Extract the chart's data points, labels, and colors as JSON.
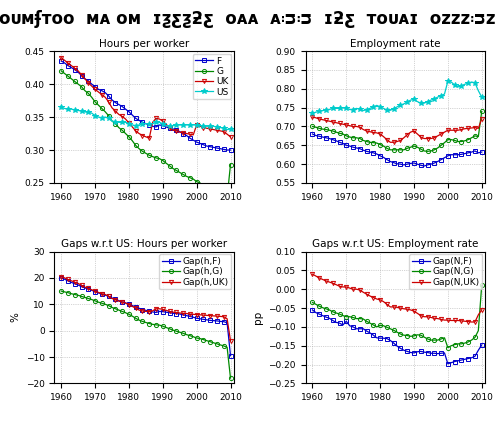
{
  "years": [
    1960,
    1961,
    1962,
    1963,
    1964,
    1965,
    1966,
    1967,
    1968,
    1969,
    1970,
    1971,
    1972,
    1973,
    1974,
    1975,
    1976,
    1977,
    1978,
    1979,
    1980,
    1981,
    1982,
    1983,
    1984,
    1985,
    1986,
    1987,
    1988,
    1989,
    1990,
    1991,
    1992,
    1993,
    1994,
    1995,
    1996,
    1997,
    1998,
    1999,
    2000,
    2001,
    2002,
    2003,
    2004,
    2005,
    2006,
    2007,
    2008,
    2009,
    2010
  ],
  "hpw_F": [
    0.435,
    0.432,
    0.428,
    0.425,
    0.422,
    0.418,
    0.413,
    0.408,
    0.405,
    0.4,
    0.396,
    0.392,
    0.39,
    0.387,
    0.382,
    0.376,
    0.372,
    0.369,
    0.366,
    0.362,
    0.358,
    0.353,
    0.348,
    0.345,
    0.342,
    0.34,
    0.338,
    0.336,
    0.335,
    0.338,
    0.337,
    0.335,
    0.333,
    0.332,
    0.33,
    0.328,
    0.325,
    0.322,
    0.318,
    0.315,
    0.312,
    0.31,
    0.308,
    0.306,
    0.305,
    0.304,
    0.303,
    0.302,
    0.301,
    0.3,
    0.3
  ],
  "hpw_G": [
    0.42,
    0.416,
    0.412,
    0.408,
    0.404,
    0.4,
    0.396,
    0.39,
    0.386,
    0.38,
    0.373,
    0.368,
    0.363,
    0.358,
    0.352,
    0.344,
    0.34,
    0.334,
    0.33,
    0.325,
    0.32,
    0.314,
    0.307,
    0.302,
    0.298,
    0.295,
    0.292,
    0.29,
    0.288,
    0.287,
    0.284,
    0.28,
    0.276,
    0.272,
    0.269,
    0.266,
    0.263,
    0.26,
    0.258,
    0.256,
    0.252,
    0.25,
    0.246,
    0.243,
    0.24,
    0.237,
    0.234,
    0.232,
    0.23,
    0.228,
    0.278
  ],
  "hpw_UK": [
    0.44,
    0.436,
    0.432,
    0.428,
    0.424,
    0.42,
    0.414,
    0.408,
    0.402,
    0.397,
    0.392,
    0.388,
    0.384,
    0.38,
    0.373,
    0.364,
    0.359,
    0.354,
    0.351,
    0.347,
    0.341,
    0.335,
    0.329,
    0.325,
    0.322,
    0.32,
    0.318,
    0.342,
    0.348,
    0.347,
    0.344,
    0.339,
    0.334,
    0.33,
    0.329,
    0.327,
    0.326,
    0.325,
    0.324,
    0.323,
    0.338,
    0.336,
    0.334,
    0.333,
    0.332,
    0.331,
    0.33,
    0.329,
    0.328,
    0.324,
    0.32
  ],
  "hpw_US": [
    0.365,
    0.363,
    0.362,
    0.362,
    0.361,
    0.36,
    0.359,
    0.358,
    0.357,
    0.356,
    0.352,
    0.35,
    0.349,
    0.35,
    0.348,
    0.344,
    0.343,
    0.342,
    0.342,
    0.342,
    0.34,
    0.338,
    0.337,
    0.338,
    0.34,
    0.34,
    0.34,
    0.34,
    0.342,
    0.342,
    0.34,
    0.337,
    0.336,
    0.337,
    0.338,
    0.338,
    0.338,
    0.338,
    0.338,
    0.338,
    0.338,
    0.337,
    0.336,
    0.336,
    0.336,
    0.336,
    0.335,
    0.334,
    0.333,
    0.331,
    0.332
  ],
  "er_F": [
    0.68,
    0.676,
    0.674,
    0.672,
    0.67,
    0.668,
    0.665,
    0.662,
    0.658,
    0.655,
    0.65,
    0.648,
    0.645,
    0.643,
    0.641,
    0.637,
    0.634,
    0.632,
    0.63,
    0.627,
    0.622,
    0.618,
    0.612,
    0.607,
    0.604,
    0.601,
    0.6,
    0.598,
    0.6,
    0.602,
    0.603,
    0.6,
    0.597,
    0.595,
    0.598,
    0.6,
    0.603,
    0.607,
    0.612,
    0.617,
    0.622,
    0.625,
    0.625,
    0.625,
    0.626,
    0.628,
    0.63,
    0.632,
    0.635,
    0.63,
    0.632
  ],
  "er_G": [
    0.7,
    0.698,
    0.695,
    0.693,
    0.692,
    0.69,
    0.688,
    0.685,
    0.682,
    0.68,
    0.675,
    0.672,
    0.67,
    0.67,
    0.668,
    0.663,
    0.66,
    0.658,
    0.657,
    0.656,
    0.652,
    0.648,
    0.642,
    0.638,
    0.638,
    0.638,
    0.638,
    0.638,
    0.642,
    0.645,
    0.648,
    0.645,
    0.64,
    0.635,
    0.634,
    0.635,
    0.638,
    0.643,
    0.65,
    0.657,
    0.665,
    0.665,
    0.663,
    0.66,
    0.66,
    0.662,
    0.665,
    0.67,
    0.675,
    0.673,
    0.74
  ],
  "er_UK": [
    0.725,
    0.723,
    0.72,
    0.718,
    0.716,
    0.714,
    0.712,
    0.71,
    0.708,
    0.706,
    0.704,
    0.702,
    0.7,
    0.7,
    0.698,
    0.692,
    0.688,
    0.686,
    0.684,
    0.683,
    0.68,
    0.673,
    0.665,
    0.658,
    0.658,
    0.66,
    0.663,
    0.67,
    0.678,
    0.685,
    0.688,
    0.68,
    0.672,
    0.668,
    0.668,
    0.668,
    0.67,
    0.675,
    0.68,
    0.685,
    0.69,
    0.69,
    0.69,
    0.69,
    0.692,
    0.694,
    0.695,
    0.696,
    0.697,
    0.695,
    0.72
  ],
  "er_US": [
    0.735,
    0.738,
    0.74,
    0.742,
    0.744,
    0.745,
    0.748,
    0.748,
    0.748,
    0.75,
    0.748,
    0.745,
    0.745,
    0.748,
    0.746,
    0.742,
    0.745,
    0.748,
    0.752,
    0.756,
    0.752,
    0.748,
    0.743,
    0.743,
    0.747,
    0.752,
    0.757,
    0.76,
    0.765,
    0.77,
    0.772,
    0.766,
    0.762,
    0.762,
    0.766,
    0.77,
    0.773,
    0.778,
    0.782,
    0.786,
    0.82,
    0.818,
    0.81,
    0.805,
    0.808,
    0.812,
    0.815,
    0.818,
    0.816,
    0.795,
    0.778
  ],
  "gap_hF": [
    20.0,
    19.5,
    18.9,
    18.3,
    17.8,
    17.3,
    16.7,
    16.2,
    15.8,
    15.3,
    14.8,
    14.3,
    13.8,
    13.5,
    13.0,
    12.4,
    11.9,
    11.4,
    10.9,
    10.5,
    10.0,
    9.5,
    9.0,
    8.5,
    8.0,
    7.7,
    7.4,
    7.1,
    6.9,
    7.3,
    7.2,
    7.0,
    6.8,
    6.6,
    6.5,
    6.3,
    6.0,
    5.7,
    5.4,
    5.1,
    4.7,
    4.5,
    4.3,
    4.1,
    3.9,
    3.8,
    3.7,
    3.5,
    3.4,
    3.0,
    -9.5
  ],
  "gap_hG": [
    15.0,
    14.7,
    14.4,
    14.0,
    13.7,
    13.4,
    13.0,
    12.6,
    12.2,
    11.8,
    11.3,
    10.8,
    10.4,
    10.0,
    9.5,
    8.8,
    8.3,
    7.8,
    7.3,
    6.8,
    6.2,
    5.5,
    4.7,
    4.0,
    3.5,
    3.1,
    2.7,
    2.4,
    2.2,
    2.1,
    1.7,
    1.2,
    0.7,
    0.2,
    -0.2,
    -0.6,
    -1.0,
    -1.5,
    -1.9,
    -2.3,
    -2.8,
    -3.0,
    -3.4,
    -3.8,
    -4.2,
    -4.6,
    -5.0,
    -5.4,
    -5.8,
    -6.3,
    -18.0
  ],
  "gap_hUK": [
    20.5,
    20.0,
    19.4,
    18.9,
    18.4,
    17.9,
    17.2,
    16.5,
    16.0,
    15.5,
    15.0,
    14.5,
    14.0,
    13.7,
    13.1,
    12.2,
    11.7,
    11.2,
    10.9,
    10.5,
    9.9,
    9.2,
    8.5,
    7.8,
    7.5,
    7.3,
    7.2,
    7.5,
    8.3,
    8.3,
    8.1,
    7.7,
    7.3,
    7.0,
    6.9,
    6.7,
    6.6,
    6.5,
    6.3,
    6.2,
    6.1,
    6.0,
    5.9,
    5.8,
    5.7,
    5.6,
    5.5,
    5.4,
    5.3,
    4.5,
    -3.8
  ],
  "gap_NF": [
    -0.055,
    -0.062,
    -0.066,
    -0.07,
    -0.074,
    -0.077,
    -0.083,
    -0.088,
    -0.09,
    -0.095,
    -0.085,
    -0.097,
    -0.1,
    -0.105,
    -0.105,
    -0.105,
    -0.111,
    -0.116,
    -0.122,
    -0.129,
    -0.13,
    -0.13,
    -0.131,
    -0.136,
    -0.143,
    -0.151,
    -0.157,
    -0.162,
    -0.165,
    -0.168,
    -0.169,
    -0.166,
    -0.165,
    -0.167,
    -0.168,
    -0.17,
    -0.17,
    -0.171,
    -0.17,
    -0.169,
    -0.198,
    -0.195,
    -0.192,
    -0.19,
    -0.188,
    -0.186,
    -0.184,
    -0.182,
    -0.178,
    -0.162,
    -0.148
  ],
  "gap_NG": [
    -0.035,
    -0.04,
    -0.045,
    -0.049,
    -0.052,
    -0.055,
    -0.06,
    -0.063,
    -0.066,
    -0.07,
    -0.073,
    -0.073,
    -0.075,
    -0.078,
    -0.078,
    -0.079,
    -0.085,
    -0.09,
    -0.095,
    -0.1,
    -0.096,
    -0.097,
    -0.101,
    -0.105,
    -0.109,
    -0.114,
    -0.119,
    -0.122,
    -0.123,
    -0.125,
    -0.124,
    -0.121,
    -0.122,
    -0.127,
    -0.132,
    -0.135,
    -0.135,
    -0.135,
    -0.132,
    -0.129,
    -0.155,
    -0.15,
    -0.147,
    -0.145,
    -0.145,
    -0.143,
    -0.14,
    -0.135,
    -0.128,
    -0.11,
    0.01
  ],
  "gap_NUK": [
    0.04,
    0.035,
    0.03,
    0.026,
    0.022,
    0.019,
    0.016,
    0.012,
    0.008,
    0.006,
    0.006,
    0.003,
    0.0,
    0.0,
    -0.002,
    -0.008,
    -0.013,
    -0.018,
    -0.022,
    -0.026,
    -0.028,
    -0.033,
    -0.04,
    -0.047,
    -0.047,
    -0.048,
    -0.05,
    -0.052,
    -0.053,
    -0.055,
    -0.058,
    -0.064,
    -0.07,
    -0.073,
    -0.073,
    -0.075,
    -0.077,
    -0.078,
    -0.08,
    -0.082,
    -0.082,
    -0.083,
    -0.083,
    -0.083,
    -0.084,
    -0.085,
    -0.086,
    -0.087,
    -0.087,
    -0.068,
    -0.055
  ],
  "colors": {
    "F": "#0000cc",
    "G": "#008800",
    "UK": "#cc0000",
    "US": "#00cccc"
  },
  "markers": {
    "F": "s",
    "G": "o",
    "UK": "v",
    "US": "*"
  }
}
